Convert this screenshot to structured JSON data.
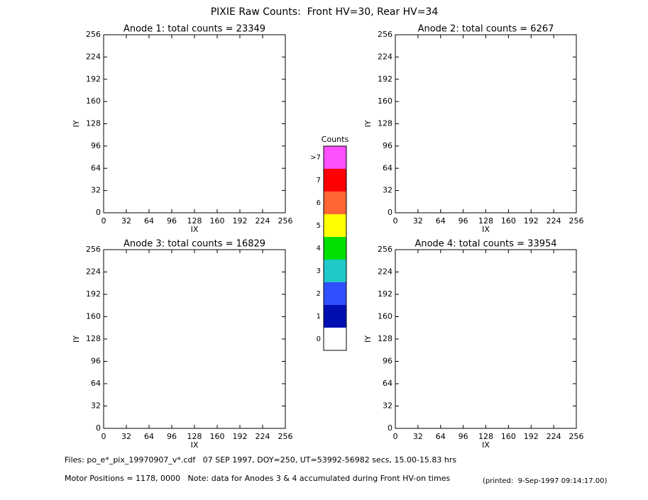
{
  "title": "PIXIE Raw Counts:  Front HV=30, Rear HV=34",
  "chart_data": [
    {
      "type": "heatmap",
      "title": "Anode 1: total counts = 23349",
      "x_label": "IX",
      "y_label": "IY",
      "xlim": [
        0,
        256
      ],
      "ylim": [
        0,
        256
      ],
      "xticks": [
        0,
        32,
        64,
        96,
        128,
        160,
        192,
        224,
        256
      ],
      "yticks": [
        0,
        32,
        64,
        96,
        128,
        160,
        192,
        224,
        256
      ]
    },
    {
      "type": "heatmap",
      "title": "Anode 2: total counts = 6267",
      "x_label": "IX",
      "y_label": "IY",
      "xlim": [
        0,
        256
      ],
      "ylim": [
        0,
        256
      ],
      "xticks": [
        0,
        32,
        64,
        96,
        128,
        160,
        192,
        224,
        256
      ],
      "yticks": [
        0,
        32,
        64,
        96,
        128,
        160,
        192,
        224,
        256
      ]
    },
    {
      "type": "heatmap",
      "title": "Anode 3: total counts = 16829",
      "x_label": "IX",
      "y_label": "IY",
      "xlim": [
        0,
        256
      ],
      "ylim": [
        0,
        256
      ],
      "xticks": [
        0,
        32,
        64,
        96,
        128,
        160,
        192,
        224,
        256
      ],
      "yticks": [
        0,
        32,
        64,
        96,
        128,
        160,
        192,
        224,
        256
      ]
    },
    {
      "type": "heatmap",
      "title": "Anode 4: total counts = 33954",
      "x_label": "IX",
      "y_label": "IY",
      "xlim": [
        0,
        256
      ],
      "ylim": [
        0,
        256
      ],
      "xticks": [
        0,
        32,
        64,
        96,
        128,
        160,
        192,
        224,
        256
      ],
      "yticks": [
        0,
        32,
        64,
        96,
        128,
        160,
        192,
        224,
        256
      ]
    }
  ],
  "colorbar": {
    "title": "Counts",
    "levels": [
      {
        "label": ">7",
        "color": "#ff50ff"
      },
      {
        "label": "7",
        "color": "#ff0000"
      },
      {
        "label": "6",
        "color": "#ff6633"
      },
      {
        "label": "5",
        "color": "#ffff00"
      },
      {
        "label": "4",
        "color": "#00e000"
      },
      {
        "label": "3",
        "color": "#20c8c8"
      },
      {
        "label": "2",
        "color": "#3050ff"
      },
      {
        "label": "1",
        "color": "#0010b0"
      },
      {
        "label": "0",
        "color": "#ffffff"
      }
    ]
  },
  "footer": {
    "files": "Files: po_e*_pix_19970907_v*.cdf   07 SEP 1997, DOY=250, UT=53992-56982 secs, 15.00-15.83 hrs",
    "motor": "Motor Positions = 1178, 0000   Note: data for Anodes 3 & 4 accumulated during Front HV-on times",
    "printed": "(printed:  9-Sep-1997 09:14:17.00)"
  }
}
